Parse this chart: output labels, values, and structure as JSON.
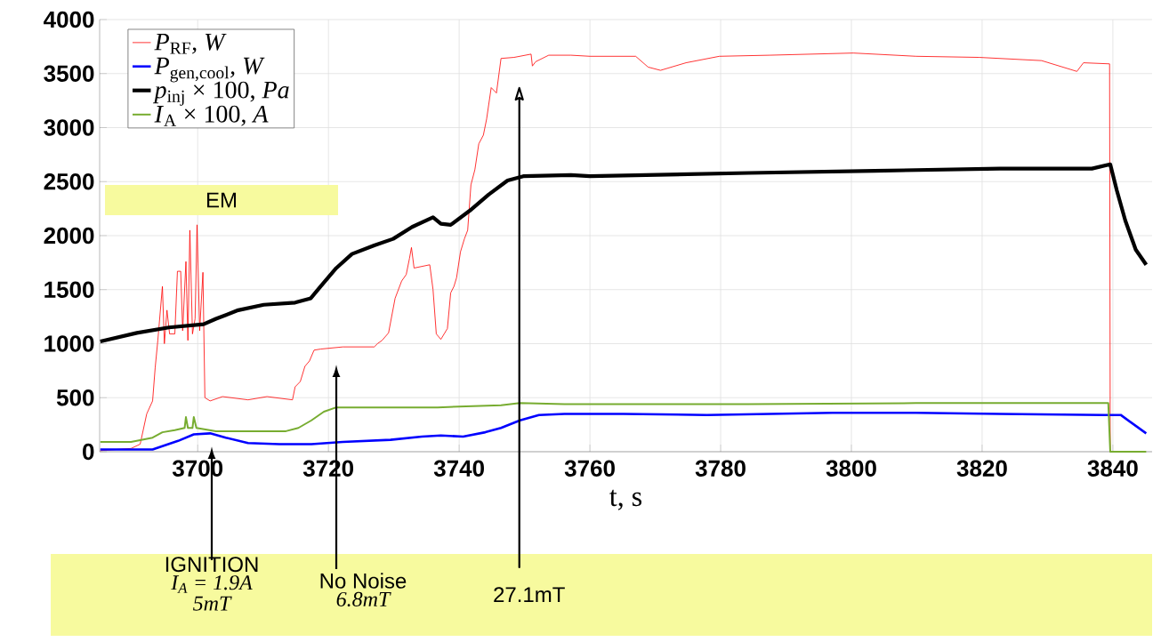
{
  "chart_data": {
    "type": "line",
    "xlabel": "t, s",
    "xlim": [
      3685,
      3846
    ],
    "ylim": [
      0,
      4000
    ],
    "xticks": [
      3700,
      3720,
      3740,
      3760,
      3780,
      3800,
      3820,
      3840
    ],
    "yticks": [
      0,
      500,
      1000,
      1500,
      2000,
      2500,
      3000,
      3500,
      4000
    ],
    "grid": true,
    "legend": "top left",
    "series": [
      {
        "name": "*P*$_{RF}$*, W*",
        "color": "#ff0000",
        "x": [
          3685.1,
          3689.8,
          3691.2,
          3692.2,
          3693.1,
          3693.5,
          3693.9,
          3694.6,
          3694.9,
          3695.3,
          3695.7,
          3696.5,
          3696.9,
          3697.4,
          3697.7,
          3698.2,
          3698.5,
          3698.8,
          3699.2,
          3699.6,
          3699.9,
          3700.3,
          3700.8,
          3701.1,
          3701.9,
          3703.8,
          3707.7,
          3710.6,
          3714.5,
          3714.9,
          3715.7,
          3716.4,
          3717.1,
          3717.8,
          3718.8,
          3722.2,
          3727.0,
          3727.5,
          3728.2,
          3729.2,
          3730.2,
          3731.2,
          3731.9,
          3732.4,
          3732.7,
          3733.1,
          3735.5,
          3736.0,
          3736.5,
          3737.2,
          3738.2,
          3738.7,
          3739.2,
          3739.6,
          3740.2,
          3740.8,
          3741.3,
          3741.8,
          3742.4,
          3743.0,
          3743.7,
          3744.2,
          3744.9,
          3745.7,
          3746.4,
          3748.4,
          3751.0,
          3751.2,
          3751.7,
          3753.7,
          3757.1,
          3760,
          3767.0,
          3768.9,
          3770.8,
          3774.7,
          3779.8,
          3787.5,
          3800.3,
          3809.9,
          3819.5,
          3829.1,
          3834.5,
          3835.5,
          3839.5,
          3839.6
        ],
        "values": [
          10,
          30,
          70,
          350,
          470,
          780,
          1030,
          1530,
          1000,
          1310,
          1090,
          1090,
          1670,
          1670,
          1120,
          1760,
          1030,
          2050,
          1090,
          1230,
          2100,
          1120,
          1660,
          500,
          470,
          510,
          480,
          510,
          480,
          600,
          650,
          790,
          840,
          940,
          950,
          970,
          970,
          1000,
          1030,
          1100,
          1420,
          1580,
          1640,
          1790,
          1890,
          1700,
          1730,
          1500,
          1090,
          1040,
          1140,
          1470,
          1530,
          1610,
          1850,
          1970,
          2050,
          2470,
          2610,
          2850,
          2930,
          3080,
          3370,
          3320,
          3640,
          3650,
          3680,
          3570,
          3610,
          3670,
          3670,
          3660,
          3660,
          3560,
          3530,
          3600,
          3660,
          3670,
          3690,
          3660,
          3650,
          3620,
          3520,
          3600,
          3590,
          0
        ]
      },
      {
        "name": "*P*$_{gen,cool}$*, W*",
        "color": "#0000ff",
        "x": [
          3685.1,
          3693.1,
          3697.0,
          3699.4,
          3701.9,
          3704.3,
          3707.7,
          3712.5,
          3717.4,
          3722.2,
          3729.5,
          3734.3,
          3737.2,
          3740.6,
          3744.0,
          3746.4,
          3749.3,
          3752.2,
          3756.1,
          3760,
          3765.1,
          3777.9,
          3797.1,
          3809.9,
          3822.7,
          3838.7,
          3841.2,
          3845.1
        ],
        "values": [
          20,
          20,
          100,
          160,
          170,
          130,
          80,
          70,
          70,
          90,
          110,
          140,
          150,
          140,
          180,
          220,
          290,
          340,
          350,
          350,
          350,
          340,
          360,
          360,
          350,
          340,
          340,
          170
        ]
      },
      {
        "name": "*p*$_{inj}$ × 100, *Pa*",
        "color": "#000000",
        "x": [
          3685.1,
          3690.7,
          3695.6,
          3700.9,
          3702.8,
          3706.2,
          3710.1,
          3714.9,
          3717.3,
          3718.8,
          3721.2,
          3723.6,
          3727.0,
          3729.9,
          3732.8,
          3736.0,
          3737.2,
          3738.7,
          3741.6,
          3744.5,
          3747.4,
          3749.8,
          3757.1,
          3760,
          3784.3,
          3803.5,
          3822.7,
          3836.8,
          3839.6,
          3840.6,
          3841.9,
          3843.5,
          3845.1
        ],
        "values": [
          1020,
          1100,
          1150,
          1180,
          1230,
          1310,
          1360,
          1380,
          1420,
          1530,
          1700,
          1830,
          1910,
          1970,
          2080,
          2170,
          2110,
          2100,
          2230,
          2380,
          2510,
          2550,
          2560,
          2550,
          2580,
          2600,
          2620,
          2620,
          2660,
          2420,
          2140,
          1870,
          1730
        ]
      },
      {
        "name": "*I*$_{A}$ × 100, *A*",
        "color": "#77ac30",
        "x": [
          3685.1,
          3689.8,
          3693.1,
          3694.6,
          3696.5,
          3698.0,
          3698.2,
          3698.5,
          3699.2,
          3699.4,
          3699.8,
          3702.8,
          3707.7,
          3713.5,
          3715.4,
          3717.4,
          3719.3,
          3721.2,
          3727.0,
          3736.7,
          3746.4,
          3749.3,
          3756.1,
          3760,
          3784.3,
          3809.9,
          3839.3,
          3839.6,
          3845.1
        ],
        "values": [
          90,
          90,
          130,
          180,
          200,
          220,
          320,
          220,
          220,
          320,
          220,
          190,
          190,
          190,
          220,
          290,
          370,
          410,
          410,
          410,
          430,
          450,
          440,
          440,
          440,
          450,
          450,
          0,
          0
        ]
      }
    ],
    "annotations": [
      "EM",
      "IGNITION",
      "I$_{A}$ = 1.9A",
      "5mT",
      "No Noise",
      "6.8mT"
    ],
    "ref_lines": [
      {
        "axis": "x",
        "value": 3749.2,
        "label": "27.1mT"
      }
    ]
  }
}
